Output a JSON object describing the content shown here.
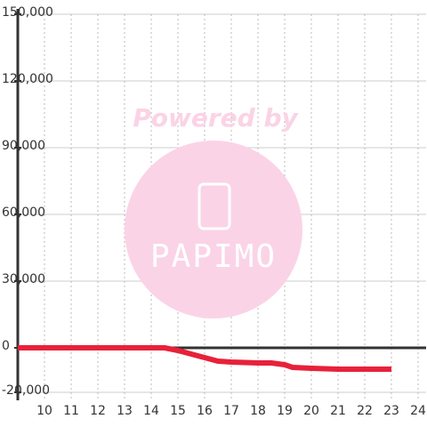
{
  "chart_data": {
    "type": "line",
    "watermark": {
      "line1": "Powered by",
      "line2": "PAPIMO"
    },
    "x": [
      9,
      14.5,
      15,
      15.5,
      16,
      16.5,
      17,
      18,
      18.5,
      19,
      19.3,
      20,
      21,
      23
    ],
    "series": [
      {
        "color": "#e8213a",
        "values": [
          0,
          0,
          -1200,
          -2800,
          -4400,
          -6000,
          -6400,
          -6800,
          -6800,
          -7600,
          -8800,
          -9200,
          -9600,
          -9600
        ]
      }
    ],
    "xlim": [
      9,
      24.3
    ],
    "ylim": [
      -20000,
      150000
    ],
    "xticks": [
      10,
      11,
      12,
      13,
      14,
      15,
      16,
      17,
      18,
      19,
      20,
      21,
      22,
      23,
      24
    ],
    "yticks": [
      {
        "value": -20000,
        "label": "-20,000"
      },
      {
        "value": 0,
        "label": "0"
      },
      {
        "value": 30000,
        "label": "30,000"
      },
      {
        "value": 60000,
        "label": "60,000"
      },
      {
        "value": 90000,
        "label": "90,000"
      },
      {
        "value": 120000,
        "label": "120,000"
      },
      {
        "value": 150000,
        "label": "150,000"
      }
    ],
    "grid": true
  }
}
